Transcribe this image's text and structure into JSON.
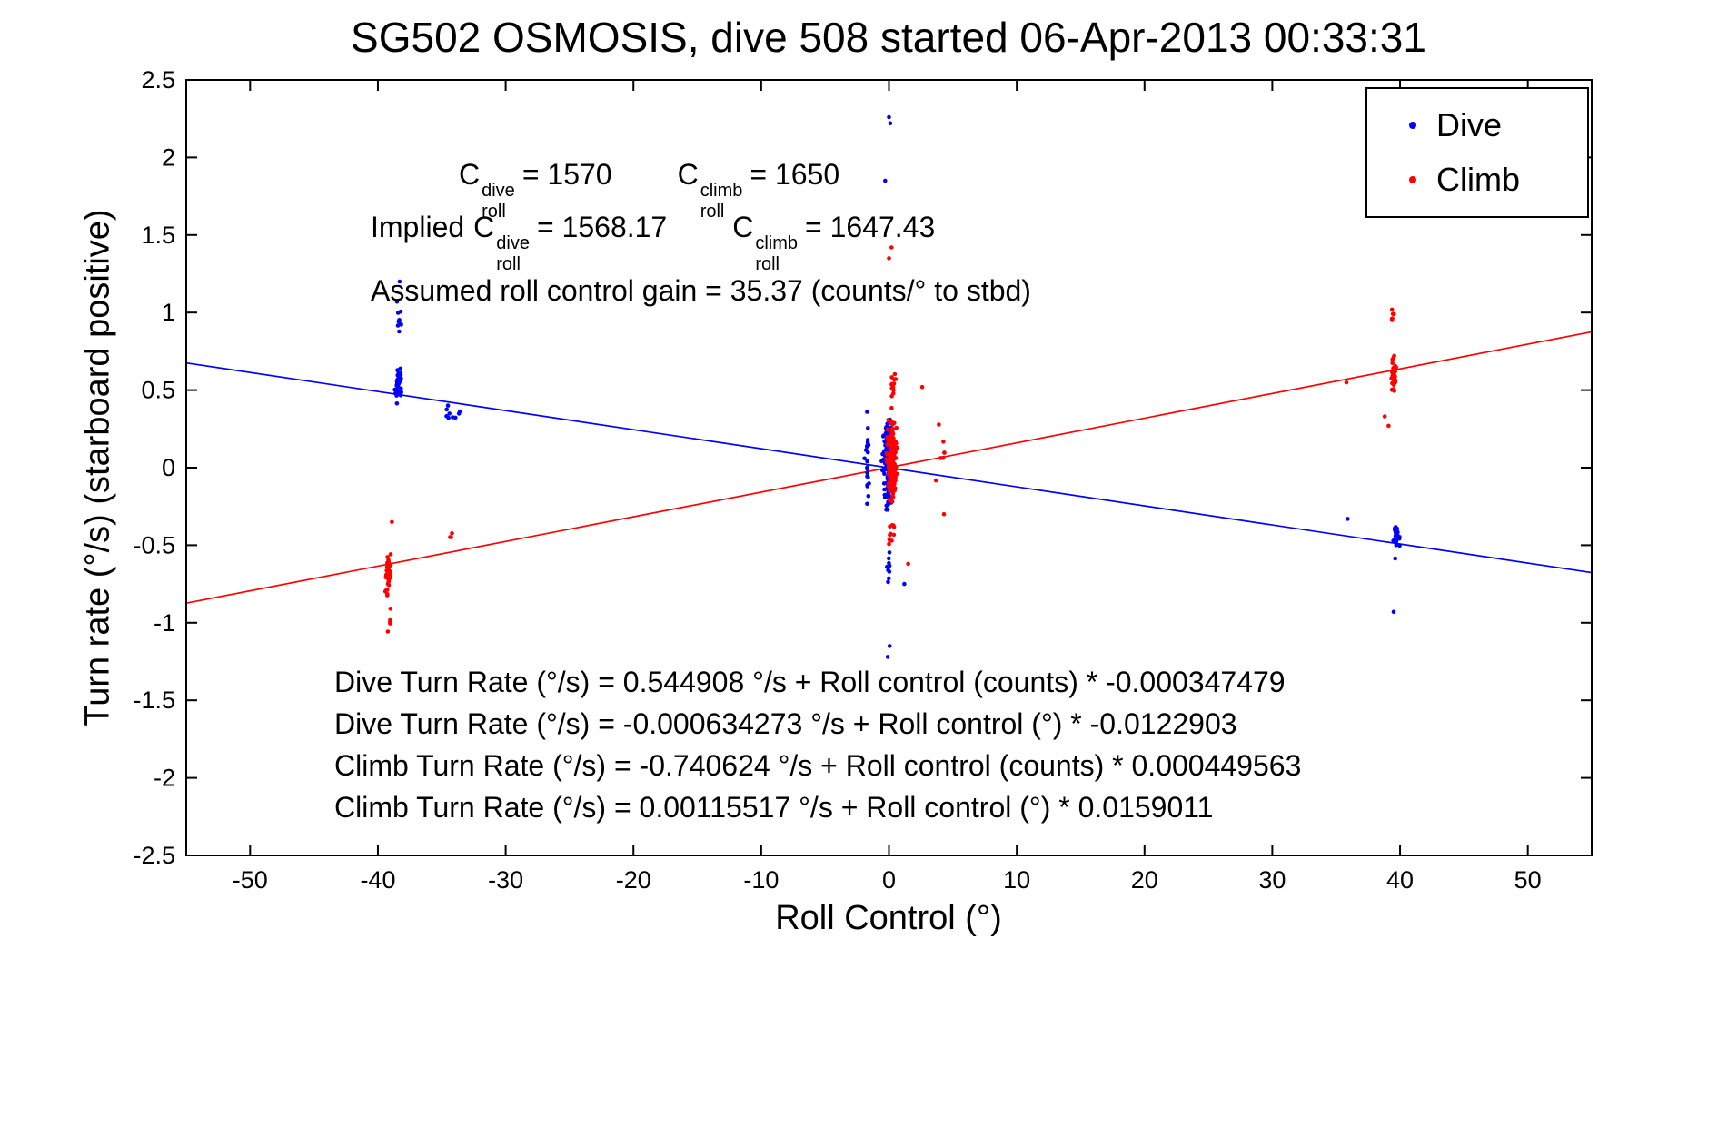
{
  "chart_data": {
    "type": "scatter",
    "title": "SG502 OSMOSIS, dive 508 started 06-Apr-2013 00:33:31",
    "xlabel": "Roll Control (°)",
    "ylabel": "Turn rate (°/s) (starboard positive)",
    "xlim": [
      -55,
      55
    ],
    "ylim": [
      -2.5,
      2.5
    ],
    "xticks": [
      -50,
      -40,
      -30,
      -20,
      -10,
      0,
      10,
      20,
      30,
      40,
      50
    ],
    "yticks": [
      -2.5,
      -2,
      -1.5,
      -1,
      -0.5,
      0,
      0.5,
      1,
      1.5,
      2,
      2.5
    ],
    "grid": false,
    "axis_color": "#000000",
    "background": "#ffffff",
    "legend": {
      "position": "top-right",
      "items": [
        {
          "name": "Dive",
          "color": "#0000ff"
        },
        {
          "name": "Climb",
          "color": "#ff0000"
        }
      ]
    },
    "series": [
      {
        "name": "Dive",
        "color": "#0000ff",
        "marker": "dot",
        "fit_line": {
          "intercept": -0.000634273,
          "slope": -0.0122903
        },
        "clusters": [
          {
            "cx": -38.4,
            "cy": 0.53,
            "sx": 0.35,
            "sy": 0.14,
            "n": 42
          },
          {
            "cx": -38.3,
            "cy": 0.88,
            "sx": 0.3,
            "sy": 0.22,
            "n": 8
          },
          {
            "cx": -34.2,
            "cy": 0.34,
            "sx": 0.9,
            "sy": 0.1,
            "n": 9
          },
          {
            "cx": -0.1,
            "cy": 0.02,
            "sx": 0.55,
            "sy": 0.42,
            "n": 150
          },
          {
            "cx": -1.7,
            "cy": 0.08,
            "sx": 0.25,
            "sy": 0.38,
            "n": 22
          },
          {
            "cx": 0.0,
            "cy": -0.62,
            "sx": 0.3,
            "sy": 0.18,
            "n": 10
          },
          {
            "cx": 39.7,
            "cy": -0.45,
            "sx": 0.35,
            "sy": 0.15,
            "n": 28
          }
        ],
        "points": [
          [
            -38.3,
            1.2
          ],
          [
            -38.5,
            1.07
          ],
          [
            0.0,
            2.26
          ],
          [
            0.1,
            2.22
          ],
          [
            -0.3,
            1.85
          ],
          [
            0.05,
            -1.15
          ],
          [
            -0.1,
            -1.22
          ],
          [
            39.5,
            -0.93
          ],
          [
            1.2,
            -0.75
          ],
          [
            35.9,
            -0.33
          ]
        ]
      },
      {
        "name": "Climb",
        "color": "#ff0000",
        "marker": "dot",
        "fit_line": {
          "intercept": 0.00115517,
          "slope": 0.0159011
        },
        "clusters": [
          {
            "cx": -39.2,
            "cy": -0.68,
            "sx": 0.3,
            "sy": 0.2,
            "n": 40
          },
          {
            "cx": -39.0,
            "cy": -0.98,
            "sx": 0.25,
            "sy": 0.12,
            "n": 5
          },
          {
            "cx": -34.3,
            "cy": -0.44,
            "sx": 0.35,
            "sy": 0.06,
            "n": 3
          },
          {
            "cx": 0.25,
            "cy": 0.05,
            "sx": 0.5,
            "sy": 0.35,
            "n": 240
          },
          {
            "cx": 0.3,
            "cy": 0.55,
            "sx": 0.35,
            "sy": 0.15,
            "n": 14
          },
          {
            "cx": 0.2,
            "cy": -0.42,
            "sx": 0.3,
            "sy": 0.15,
            "n": 12
          },
          {
            "cx": 4.0,
            "cy": 0.05,
            "sx": 1.0,
            "sy": 0.3,
            "n": 7
          },
          {
            "cx": 39.5,
            "cy": 0.6,
            "sx": 0.3,
            "sy": 0.16,
            "n": 38
          },
          {
            "cx": 39.4,
            "cy": 0.97,
            "sx": 0.25,
            "sy": 0.1,
            "n": 6
          }
        ],
        "points": [
          [
            0.2,
            1.42
          ],
          [
            0.0,
            1.35
          ],
          [
            2.6,
            0.52
          ],
          [
            35.8,
            0.55
          ],
          [
            39.1,
            0.27
          ],
          [
            38.8,
            0.33
          ],
          [
            -38.9,
            -0.35
          ],
          [
            1.5,
            -0.62
          ],
          [
            4.3,
            -0.3
          ]
        ]
      }
    ],
    "annotations": {
      "line1": {
        "c1_base": "C",
        "c1_sup": "dive",
        "c1_sub": "roll",
        "c1_eq": "= 1570",
        "c2_base": "C",
        "c2_sup": "climb",
        "c2_sub": "roll",
        "c2_eq": "= 1650"
      },
      "line2": {
        "prefix": "Implied",
        "c1_base": "C",
        "c1_sup": "dive",
        "c1_sub": "roll",
        "c1_eq": "= 1568.17",
        "c2_base": "C",
        "c2_sup": "climb",
        "c2_sub": "roll",
        "c2_eq": "= 1647.43"
      },
      "line3": "Assumed roll control gain = 35.37 (counts/° to stbd)",
      "fit_lines": [
        "Dive Turn Rate (°/s) = 0.544908 °/s + Roll control (counts) * -0.000347479",
        "Dive Turn Rate (°/s) = -0.000634273 °/s + Roll control (°) * -0.0122903",
        "Climb Turn Rate (°/s) = -0.740624 °/s + Roll control (counts) * 0.000449563",
        "Climb Turn Rate (°/s) = 0.00115517 °/s + Roll control (°) * 0.0159011"
      ]
    }
  }
}
